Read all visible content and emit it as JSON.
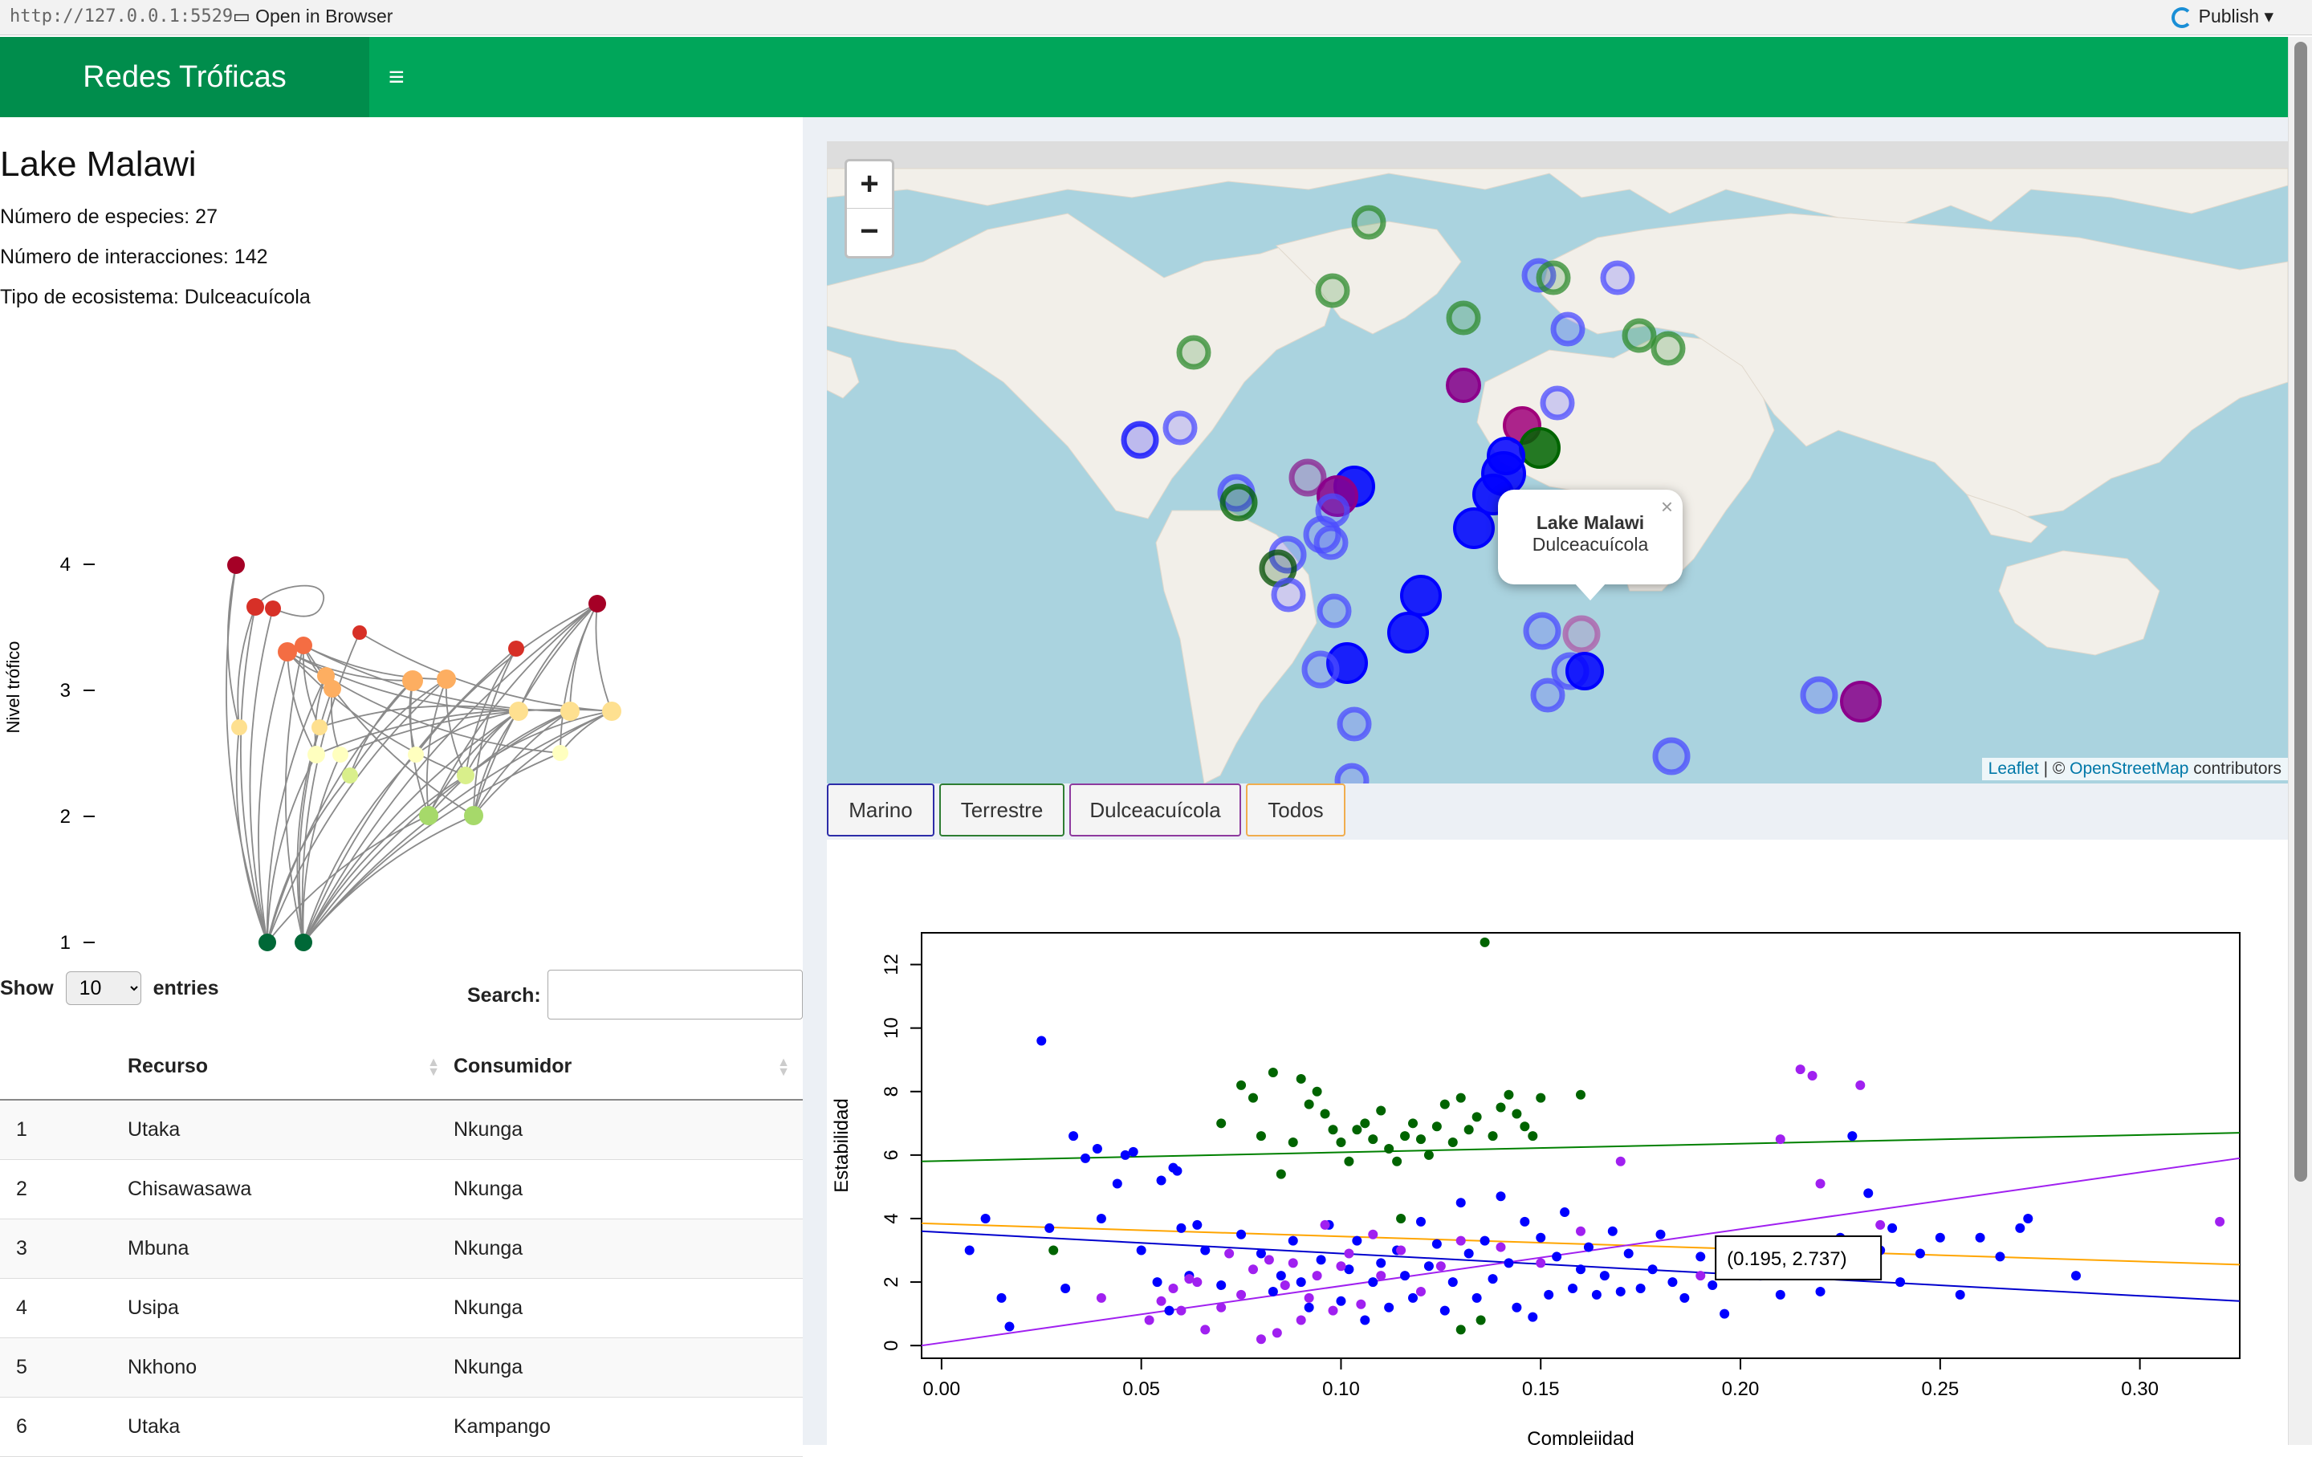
{
  "browser": {
    "url": "http://127.0.0.1:5529",
    "open_label": "Open in Browser",
    "publish_label": "Publish"
  },
  "app": {
    "title": "Redes Tróficas"
  },
  "network": {
    "name": "Lake Malawi",
    "species_label": "Número de especies: 27",
    "interactions_label": "Número de interacciones: 142",
    "ecosystem_label": "Tipo de ecosistema: Dulceacuícola",
    "ylabel": "Nivel trófico",
    "yticks": [
      1,
      2,
      3,
      4
    ]
  },
  "table": {
    "show_label": "Show",
    "entries_label": "entries",
    "page_length": "10",
    "search_label": "Search:",
    "columns": [
      "",
      "Recurso",
      "Consumidor"
    ],
    "rows": [
      [
        "1",
        "Utaka",
        "Nkunga"
      ],
      [
        "2",
        "Chisawasawa",
        "Nkunga"
      ],
      [
        "3",
        "Mbuna",
        "Nkunga"
      ],
      [
        "4",
        "Usipa",
        "Nkunga"
      ],
      [
        "5",
        "Nkhono",
        "Nkunga"
      ],
      [
        "6",
        "Utaka",
        "Kampango"
      ]
    ]
  },
  "map": {
    "zoom_in": "+",
    "zoom_out": "−",
    "attribution_leaflet": "Leaflet",
    "attribution_sep": " | © ",
    "attribution_osm": "OpenStreetMap",
    "attribution_tail": " contributors",
    "popup_title": "Lake Malawi",
    "popup_body": "Dulceacuícola",
    "popup_close": "×"
  },
  "filters": [
    {
      "label": "Marino",
      "color": "#2c2ca8"
    },
    {
      "label": "Terrestre",
      "color": "#2e7d32"
    },
    {
      "label": "Dulceacuícola",
      "color": "#8e3a9e"
    },
    {
      "label": "Todos",
      "color": "#f0ad4e"
    }
  ],
  "chart_data": {
    "type": "scatter",
    "xlabel": "Complejidad",
    "ylabel": "Estabilidad",
    "xlim": [
      -0.005,
      0.325
    ],
    "ylim": [
      -0.4,
      13.0
    ],
    "xticks": [
      0.0,
      0.05,
      0.1,
      0.15,
      0.2,
      0.25,
      0.3
    ],
    "yticks": [
      0,
      2,
      4,
      6,
      8,
      10,
      12
    ],
    "tooltip": "(0.195, 2.737)",
    "tooltip_point": [
      0.195,
      2.737
    ],
    "series": [
      {
        "color": "#0000ff",
        "points": [
          [
            0.007,
            3.0
          ],
          [
            0.011,
            4.0
          ],
          [
            0.015,
            1.5
          ],
          [
            0.017,
            0.6
          ],
          [
            0.025,
            9.6
          ],
          [
            0.027,
            3.7
          ],
          [
            0.031,
            1.8
          ],
          [
            0.033,
            6.6
          ],
          [
            0.036,
            5.9
          ],
          [
            0.039,
            6.2
          ],
          [
            0.04,
            4.0
          ],
          [
            0.044,
            5.1
          ],
          [
            0.046,
            6.0
          ],
          [
            0.048,
            6.1
          ],
          [
            0.05,
            3.0
          ],
          [
            0.054,
            2.0
          ],
          [
            0.055,
            5.2
          ],
          [
            0.057,
            1.1
          ],
          [
            0.058,
            5.6
          ],
          [
            0.059,
            5.5
          ],
          [
            0.06,
            3.7
          ],
          [
            0.062,
            2.2
          ],
          [
            0.064,
            3.8
          ],
          [
            0.066,
            3.0
          ],
          [
            0.07,
            1.9
          ],
          [
            0.075,
            3.5
          ],
          [
            0.08,
            2.9
          ],
          [
            0.083,
            1.7
          ],
          [
            0.085,
            2.2
          ],
          [
            0.088,
            3.3
          ],
          [
            0.09,
            2.0
          ],
          [
            0.092,
            1.2
          ],
          [
            0.095,
            2.7
          ],
          [
            0.097,
            3.8
          ],
          [
            0.1,
            1.4
          ],
          [
            0.102,
            2.4
          ],
          [
            0.104,
            3.3
          ],
          [
            0.106,
            0.8
          ],
          [
            0.108,
            2.0
          ],
          [
            0.11,
            2.6
          ],
          [
            0.112,
            1.2
          ],
          [
            0.114,
            3.0
          ],
          [
            0.116,
            2.2
          ],
          [
            0.118,
            1.5
          ],
          [
            0.12,
            3.9
          ],
          [
            0.122,
            2.5
          ],
          [
            0.124,
            3.2
          ],
          [
            0.126,
            1.1
          ],
          [
            0.128,
            2.0
          ],
          [
            0.13,
            4.5
          ],
          [
            0.132,
            2.9
          ],
          [
            0.134,
            1.5
          ],
          [
            0.136,
            3.3
          ],
          [
            0.138,
            2.1
          ],
          [
            0.14,
            4.7
          ],
          [
            0.142,
            2.6
          ],
          [
            0.144,
            1.2
          ],
          [
            0.146,
            3.9
          ],
          [
            0.148,
            0.9
          ],
          [
            0.15,
            3.4
          ],
          [
            0.152,
            1.6
          ],
          [
            0.154,
            2.8
          ],
          [
            0.156,
            4.2
          ],
          [
            0.158,
            1.8
          ],
          [
            0.16,
            2.4
          ],
          [
            0.162,
            3.1
          ],
          [
            0.164,
            1.6
          ],
          [
            0.166,
            2.2
          ],
          [
            0.168,
            3.6
          ],
          [
            0.17,
            1.7
          ],
          [
            0.172,
            2.9
          ],
          [
            0.175,
            1.8
          ],
          [
            0.178,
            2.4
          ],
          [
            0.18,
            3.5
          ],
          [
            0.183,
            2.0
          ],
          [
            0.186,
            1.5
          ],
          [
            0.19,
            2.8
          ],
          [
            0.193,
            1.9
          ],
          [
            0.196,
            1.0
          ],
          [
            0.2,
            2.5
          ],
          [
            0.205,
            2.2
          ],
          [
            0.21,
            1.6
          ],
          [
            0.215,
            3.2
          ],
          [
            0.22,
            1.7
          ],
          [
            0.225,
            3.4
          ],
          [
            0.228,
            6.6
          ],
          [
            0.232,
            4.8
          ],
          [
            0.235,
            3.0
          ],
          [
            0.238,
            3.7
          ],
          [
            0.24,
            2.0
          ],
          [
            0.245,
            2.9
          ],
          [
            0.25,
            3.4
          ],
          [
            0.255,
            1.6
          ],
          [
            0.26,
            3.4
          ],
          [
            0.265,
            2.8
          ],
          [
            0.27,
            3.7
          ],
          [
            0.272,
            4.0
          ],
          [
            0.284,
            2.2
          ]
        ]
      },
      {
        "color": "#006400",
        "points": [
          [
            0.028,
            3.0
          ],
          [
            0.07,
            7.0
          ],
          [
            0.075,
            8.2
          ],
          [
            0.078,
            7.8
          ],
          [
            0.08,
            6.6
          ],
          [
            0.083,
            8.6
          ],
          [
            0.085,
            5.4
          ],
          [
            0.088,
            6.4
          ],
          [
            0.09,
            8.4
          ],
          [
            0.092,
            7.6
          ],
          [
            0.094,
            8.0
          ],
          [
            0.096,
            7.3
          ],
          [
            0.098,
            6.8
          ],
          [
            0.1,
            6.4
          ],
          [
            0.102,
            5.8
          ],
          [
            0.104,
            6.8
          ],
          [
            0.106,
            7.0
          ],
          [
            0.108,
            6.5
          ],
          [
            0.11,
            7.4
          ],
          [
            0.112,
            6.2
          ],
          [
            0.114,
            5.8
          ],
          [
            0.116,
            6.6
          ],
          [
            0.118,
            7.0
          ],
          [
            0.12,
            6.5
          ],
          [
            0.122,
            6.0
          ],
          [
            0.124,
            6.9
          ],
          [
            0.126,
            7.6
          ],
          [
            0.128,
            6.4
          ],
          [
            0.13,
            7.8
          ],
          [
            0.132,
            6.8
          ],
          [
            0.134,
            7.2
          ],
          [
            0.136,
            12.7
          ],
          [
            0.138,
            6.6
          ],
          [
            0.14,
            7.5
          ],
          [
            0.142,
            7.9
          ],
          [
            0.144,
            7.3
          ],
          [
            0.146,
            6.9
          ],
          [
            0.148,
            6.6
          ],
          [
            0.15,
            7.8
          ],
          [
            0.16,
            7.9
          ],
          [
            0.115,
            4.0
          ],
          [
            0.13,
            0.5
          ],
          [
            0.135,
            0.8
          ]
        ]
      },
      {
        "color": "#a020f0",
        "points": [
          [
            0.04,
            1.5
          ],
          [
            0.052,
            0.8
          ],
          [
            0.055,
            1.4
          ],
          [
            0.058,
            1.8
          ],
          [
            0.06,
            1.1
          ],
          [
            0.062,
            2.1
          ],
          [
            0.064,
            2.0
          ],
          [
            0.066,
            0.5
          ],
          [
            0.07,
            1.2
          ],
          [
            0.072,
            2.9
          ],
          [
            0.075,
            1.6
          ],
          [
            0.078,
            2.4
          ],
          [
            0.08,
            0.2
          ],
          [
            0.082,
            2.7
          ],
          [
            0.084,
            0.4
          ],
          [
            0.086,
            1.9
          ],
          [
            0.088,
            2.6
          ],
          [
            0.09,
            0.8
          ],
          [
            0.092,
            1.5
          ],
          [
            0.094,
            2.2
          ],
          [
            0.096,
            3.8
          ],
          [
            0.098,
            1.1
          ],
          [
            0.1,
            2.5
          ],
          [
            0.102,
            2.9
          ],
          [
            0.105,
            1.3
          ],
          [
            0.108,
            3.5
          ],
          [
            0.11,
            2.2
          ],
          [
            0.115,
            3.0
          ],
          [
            0.12,
            1.7
          ],
          [
            0.125,
            2.5
          ],
          [
            0.13,
            3.3
          ],
          [
            0.14,
            3.1
          ],
          [
            0.15,
            2.6
          ],
          [
            0.16,
            3.6
          ],
          [
            0.17,
            5.8
          ],
          [
            0.19,
            2.2
          ],
          [
            0.195,
            2.74
          ],
          [
            0.21,
            6.5
          ],
          [
            0.215,
            8.7
          ],
          [
            0.218,
            8.5
          ],
          [
            0.22,
            5.1
          ],
          [
            0.23,
            8.2
          ],
          [
            0.235,
            3.8
          ],
          [
            0.32,
            3.9
          ]
        ]
      }
    ],
    "lines": [
      {
        "color": "#008000",
        "x": [
          -0.005,
          0.325
        ],
        "y": [
          5.8,
          6.7
        ]
      },
      {
        "color": "#0000cd",
        "x": [
          -0.005,
          0.325
        ],
        "y": [
          3.6,
          1.4
        ]
      },
      {
        "color": "#ffa500",
        "x": [
          -0.005,
          0.325
        ],
        "y": [
          3.85,
          2.55
        ]
      },
      {
        "color": "#a020f0",
        "x": [
          -0.005,
          0.325
        ],
        "y": [
          0.0,
          5.9
        ]
      }
    ]
  }
}
